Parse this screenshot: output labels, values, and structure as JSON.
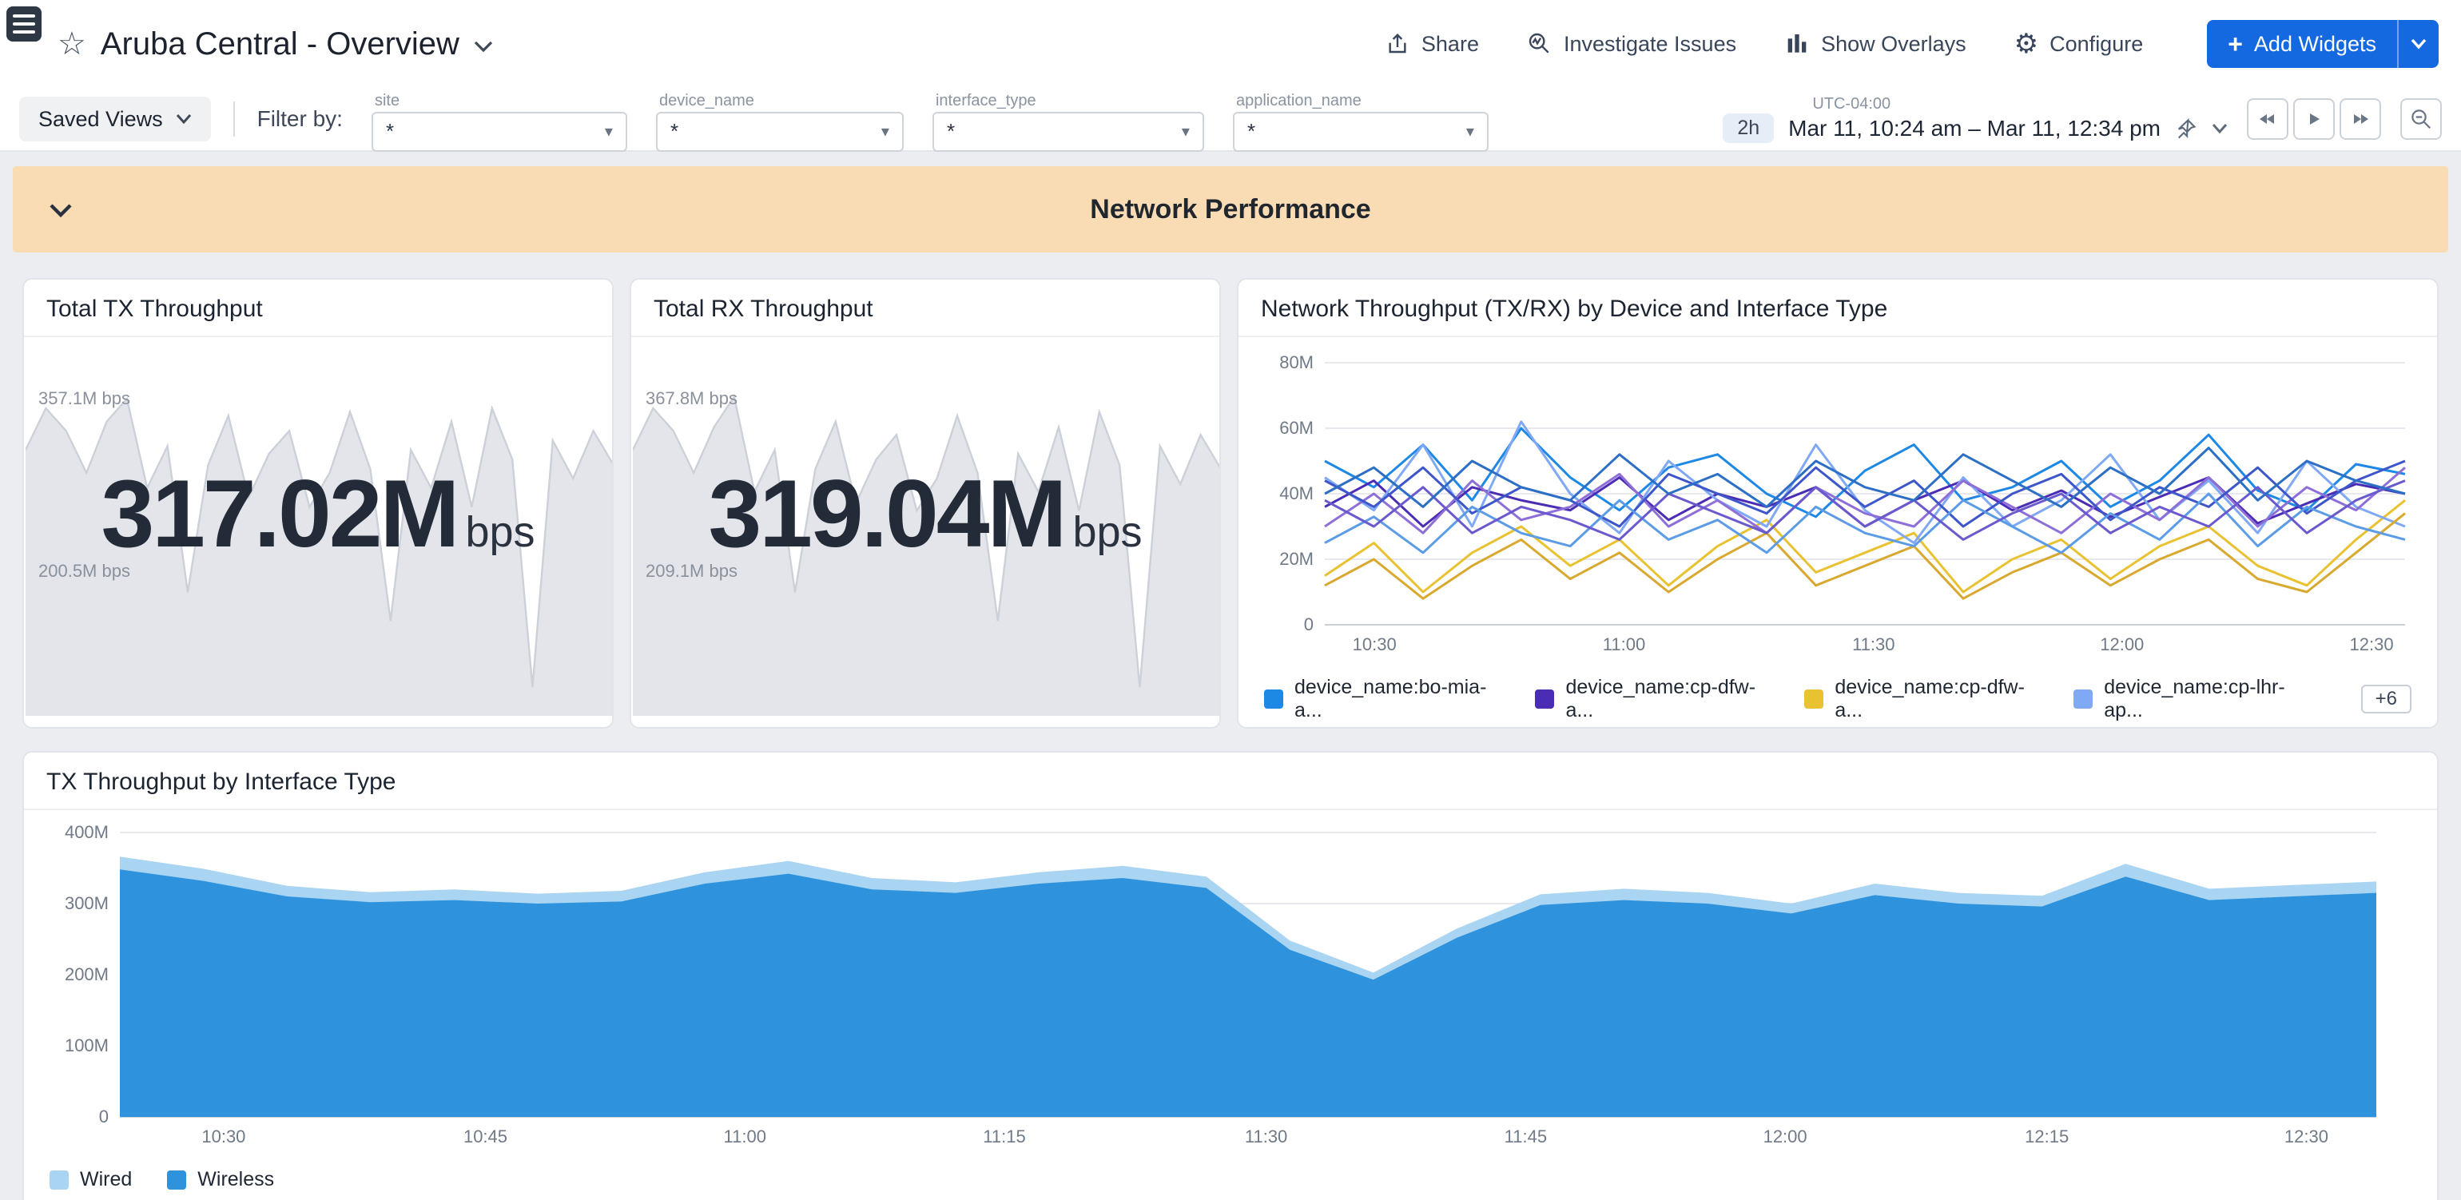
{
  "topbar": {
    "title": "Aruba Central - Overview",
    "actions": {
      "share": "Share",
      "investigate": "Investigate Issues",
      "overlays": "Show Overlays",
      "configure": "Configure",
      "add_widgets": "Add Widgets"
    }
  },
  "filterbar": {
    "saved_views": "Saved Views",
    "filter_by": "Filter by:",
    "filters": [
      {
        "label": "site",
        "value": "*"
      },
      {
        "label": "device_name",
        "value": "*"
      },
      {
        "label": "interface_type",
        "value": "*"
      },
      {
        "label": "application_name",
        "value": "*"
      }
    ],
    "timezone": "UTC-04:00",
    "duration": "2h",
    "range": "Mar 11, 10:24 am – Mar 11, 12:34 pm"
  },
  "section_header": {
    "title": "Network Performance"
  },
  "cards": {
    "tx": {
      "title": "Total TX Throughput",
      "value": "317.02M",
      "unit": "bps",
      "max": "357.1M bps",
      "min": "200.5M bps"
    },
    "rx": {
      "title": "Total RX Throughput",
      "value": "319.04M",
      "unit": "bps",
      "max": "367.8M bps",
      "min": "209.1M bps"
    },
    "device_chart": {
      "title": "Network Throughput (TX/RX) by Device and Interface Type",
      "more": "+6"
    },
    "interface_chart": {
      "title": "TX Throughput by Interface Type"
    }
  },
  "chart_data": [
    {
      "id": "total-tx-sparkline",
      "type": "area",
      "title": "Total TX Throughput",
      "unit": "Mbps",
      "current": 317.02,
      "max": 357.1,
      "min": 200.5,
      "ylim": [
        190,
        365
      ],
      "series": [
        {
          "name": "Total TX Throughput",
          "color": "#e3e5ea",
          "stroke": "#ccd1d9",
          "values": [
            330,
            352,
            340,
            318,
            345,
            357,
            310,
            332,
            255,
            322,
            348,
            305,
            328,
            340,
            300,
            318,
            350,
            320,
            240,
            330,
            310,
            345,
            300,
            352,
            325,
            205,
            335,
            315,
            340,
            322
          ]
        }
      ]
    },
    {
      "id": "total-rx-sparkline",
      "type": "area",
      "title": "Total RX Throughput",
      "unit": "Mbps",
      "current": 319.04,
      "max": 367.8,
      "min": 209.1,
      "ylim": [
        200,
        375
      ],
      "series": [
        {
          "name": "Total RX Throughput",
          "color": "#e3e5ea",
          "stroke": "#ccd1d9",
          "values": [
            340,
            362,
            350,
            328,
            352,
            368,
            318,
            340,
            265,
            330,
            355,
            312,
            335,
            348,
            308,
            325,
            358,
            328,
            250,
            338,
            318,
            352,
            308,
            360,
            332,
            215,
            342,
            322,
            348,
            330
          ]
        }
      ]
    },
    {
      "id": "throughput-by-device",
      "type": "line",
      "title": "Network Throughput (TX/RX) by Device and Interface Type",
      "unit": "Mbps",
      "ylim": [
        0,
        80
      ],
      "yticks": [
        {
          "v": 0,
          "label": "0"
        },
        {
          "v": 20,
          "label": "20M"
        },
        {
          "v": 40,
          "label": "40M"
        },
        {
          "v": 60,
          "label": "60M"
        },
        {
          "v": 80,
          "label": "80M"
        }
      ],
      "xticks": [
        {
          "f": 0.046,
          "label": "10:30"
        },
        {
          "f": 0.277,
          "label": "11:00"
        },
        {
          "f": 0.508,
          "label": "11:30"
        },
        {
          "f": 0.738,
          "label": "12:00"
        },
        {
          "f": 0.969,
          "label": "12:30"
        }
      ],
      "series": [
        {
          "name": "device_name:bo-mia-a...",
          "color": "#1E88E5",
          "values": [
            50,
            42,
            55,
            38,
            60,
            45,
            35,
            48,
            52,
            40,
            33,
            47,
            55,
            38,
            42,
            50,
            36,
            44,
            58,
            41,
            35,
            49,
            46
          ]
        },
        {
          "name": "device_name:cp-dfw-a...",
          "color": "#4B2DB5",
          "values": [
            36,
            44,
            30,
            42,
            38,
            35,
            45,
            32,
            40,
            36,
            42,
            30,
            38,
            44,
            35,
            41,
            33,
            39,
            45,
            31,
            37,
            43,
            40
          ]
        },
        {
          "name": "device_name:cp-dfw-a...",
          "color": "#E9C231",
          "values": [
            15,
            25,
            10,
            22,
            30,
            18,
            26,
            12,
            24,
            32,
            16,
            22,
            28,
            10,
            20,
            26,
            14,
            24,
            30,
            18,
            12,
            26,
            38
          ]
        },
        {
          "name": "device_name:cp-lhr-ap...",
          "color": "#7FA8F5",
          "values": [
            45,
            35,
            55,
            30,
            62,
            40,
            28,
            50,
            38,
            30,
            55,
            35,
            25,
            45,
            30,
            38,
            52,
            32,
            44,
            28,
            50,
            36,
            30
          ]
        },
        {
          "name": "",
          "color": "#8E6FD8",
          "values": [
            30,
            40,
            28,
            44,
            32,
            36,
            46,
            30,
            38,
            28,
            42,
            34,
            30,
            44,
            36,
            28,
            40,
            32,
            45,
            30,
            42,
            35,
            48
          ]
        },
        {
          "name": "",
          "color": "#3D56C9",
          "values": [
            44,
            36,
            48,
            34,
            42,
            38,
            30,
            46,
            40,
            34,
            48,
            36,
            44,
            30,
            40,
            46,
            32,
            42,
            36,
            48,
            34,
            44,
            50
          ]
        },
        {
          "name": "",
          "color": "#D9A92F",
          "values": [
            12,
            20,
            8,
            18,
            26,
            14,
            22,
            10,
            20,
            28,
            12,
            18,
            24,
            8,
            16,
            22,
            12,
            20,
            26,
            14,
            10,
            22,
            34
          ]
        },
        {
          "name": "",
          "color": "#5C9CE6",
          "values": [
            25,
            33,
            22,
            36,
            28,
            24,
            38,
            26,
            32,
            22,
            36,
            28,
            24,
            38,
            30,
            22,
            34,
            26,
            40,
            24,
            36,
            30,
            26
          ]
        },
        {
          "name": "",
          "color": "#6A5ACD",
          "values": [
            38,
            30,
            42,
            28,
            36,
            32,
            26,
            40,
            34,
            28,
            42,
            30,
            38,
            26,
            34,
            40,
            28,
            36,
            30,
            42,
            28,
            38,
            44
          ]
        },
        {
          "name": "",
          "color": "#2C6FC4",
          "values": [
            40,
            48,
            36,
            50,
            42,
            38,
            52,
            40,
            46,
            36,
            50,
            42,
            38,
            52,
            44,
            36,
            48,
            40,
            54,
            38,
            50,
            44,
            40
          ]
        }
      ]
    },
    {
      "id": "tx-by-interface-type",
      "type": "area-stacked",
      "title": "TX Throughput by Interface Type",
      "unit": "Mbps",
      "ylim": [
        0,
        400
      ],
      "yticks": [
        {
          "v": 0,
          "label": "0"
        },
        {
          "v": 100,
          "label": "100M"
        },
        {
          "v": 200,
          "label": "200M"
        },
        {
          "v": 300,
          "label": "300M"
        },
        {
          "v": 400,
          "label": "400M"
        }
      ],
      "xticks": [
        {
          "f": 0.046,
          "label": "10:30"
        },
        {
          "f": 0.162,
          "label": "10:45"
        },
        {
          "f": 0.277,
          "label": "11:00"
        },
        {
          "f": 0.392,
          "label": "11:15"
        },
        {
          "f": 0.508,
          "label": "11:30"
        },
        {
          "f": 0.623,
          "label": "11:45"
        },
        {
          "f": 0.738,
          "label": "12:00"
        },
        {
          "f": 0.854,
          "label": "12:15"
        },
        {
          "f": 0.969,
          "label": "12:30"
        }
      ],
      "series": [
        {
          "name": "Wired",
          "color": "#A9D4F2",
          "values": [
            18,
            17,
            15,
            14,
            15,
            14,
            15,
            16,
            18,
            16,
            15,
            16,
            17,
            16,
            13,
            10,
            13,
            15,
            16,
            15,
            14,
            16,
            15,
            15,
            18,
            16,
            16,
            16
          ]
        },
        {
          "name": "Wireless",
          "color": "#2E93DC",
          "values": [
            348,
            332,
            310,
            302,
            305,
            300,
            303,
            328,
            342,
            320,
            315,
            328,
            336,
            322,
            235,
            193,
            252,
            298,
            305,
            300,
            286,
            312,
            300,
            296,
            338,
            305,
            310,
            315
          ]
        }
      ]
    }
  ]
}
